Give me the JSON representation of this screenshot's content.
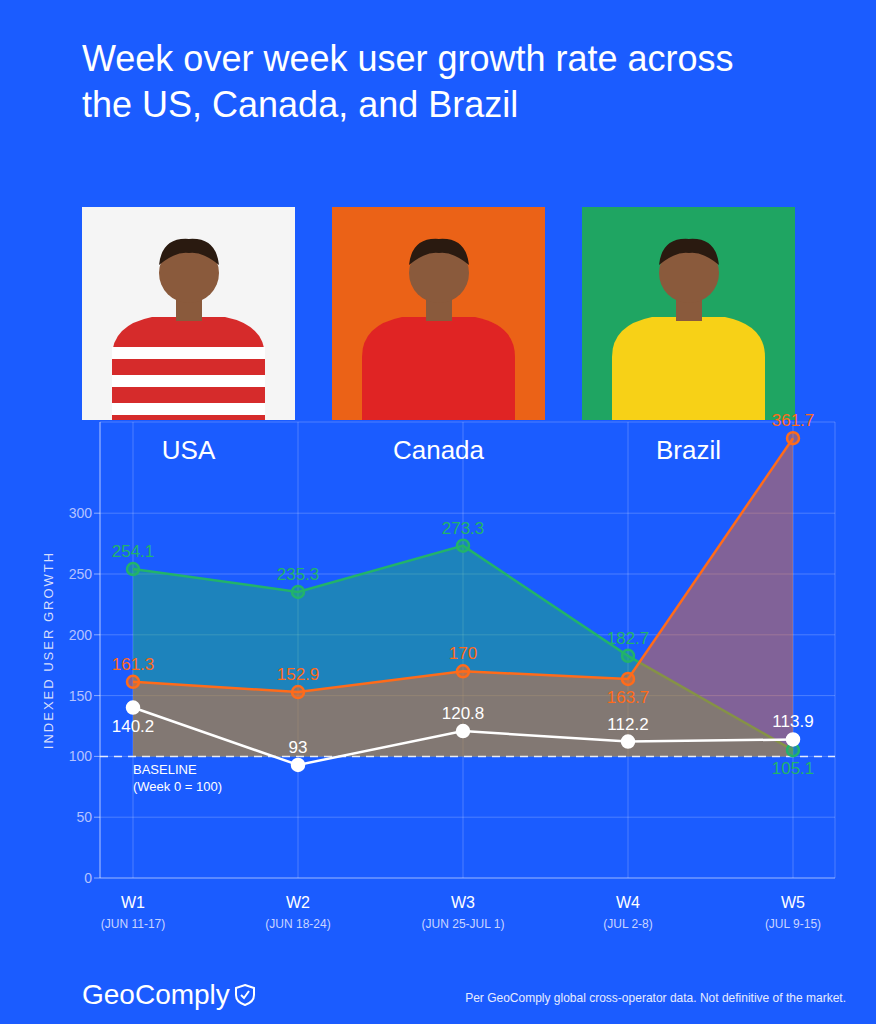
{
  "chart_data": {
    "type": "line",
    "title": "Week over week user growth rate across the US, Canada, and Brazil",
    "y_label": "INDEXED USER GROWTH",
    "categories": [
      "W1",
      "W2",
      "W3",
      "W4",
      "W5"
    ],
    "category_dates": [
      "(JUN 11-17)",
      "(JUN 18-24)",
      "(JUN 25-JUL 1)",
      "(JUL 2-8)",
      "(JUL 9-15)"
    ],
    "series": [
      {
        "name": "USA",
        "color": "#ffffff",
        "type": "line",
        "marker": "circle",
        "values": [
          140.2,
          93,
          120.8,
          112.2,
          113.9
        ]
      },
      {
        "name": "Canada",
        "color": "#ff6b1a",
        "type": "area",
        "marker": "circle",
        "values": [
          161.3,
          152.9,
          170,
          163.7,
          361.7
        ]
      },
      {
        "name": "Brazil",
        "color": "#22b36b",
        "type": "area",
        "marker": "circle",
        "values": [
          254.1,
          235.3,
          273.3,
          182.7,
          105.1
        ]
      }
    ],
    "ylim": [
      0,
      375
    ],
    "yticks": [
      0,
      50,
      100,
      150,
      200,
      250,
      300
    ],
    "grid": true,
    "data_labels": true,
    "baseline": {
      "value": 100,
      "label": "BASELINE",
      "note": "(Week 0 = 100)"
    },
    "brand": "GeoComply",
    "source": "Per GeoComply global cross-operator data. Not definitive of the market."
  }
}
